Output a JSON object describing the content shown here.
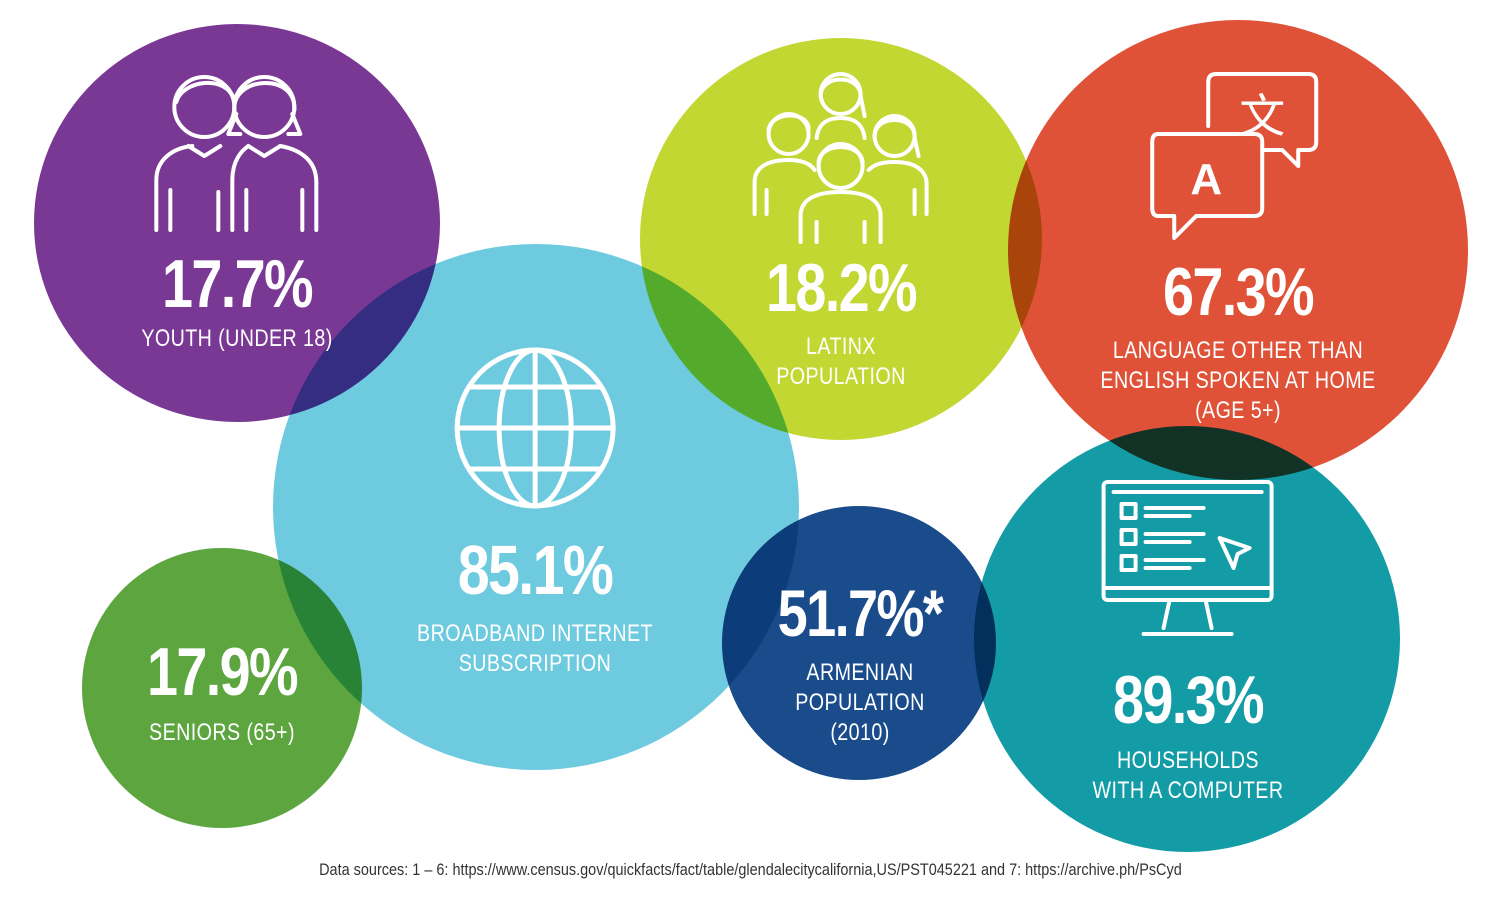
{
  "colors": {
    "purple": "#7A3895",
    "lime": "#C2D731",
    "red": "#DF5238",
    "light_blue": "#6ECBDF",
    "green": "#5DA53F",
    "navy": "#1A4C8C",
    "teal": "#139CA6"
  },
  "stats": {
    "youth": {
      "value": "17.7%",
      "label": "YOUTH (UNDER 18)",
      "icon": "children-icon"
    },
    "latinx": {
      "value": "18.2%",
      "label_lines": [
        "LATINX",
        "POPULATION"
      ],
      "icon": "group-of-people-icon"
    },
    "language": {
      "value": "67.3%",
      "label_lines": [
        "LANGUAGE OTHER THAN",
        "ENGLISH SPOKEN AT HOME",
        "(AGE 5+)"
      ],
      "icon": "translation-speech-bubbles-icon"
    },
    "broadband": {
      "value": "85.1%",
      "label_lines": [
        "BROADBAND INTERNET",
        "SUBSCRIPTION"
      ],
      "icon": "globe-icon"
    },
    "seniors": {
      "value": "17.9%",
      "label": "SENIORS (65+)"
    },
    "armenian": {
      "value": "51.7%*",
      "label_lines": [
        "ARMENIAN",
        "POPULATION",
        "(2010)"
      ]
    },
    "computer": {
      "value": "89.3%",
      "label_lines": [
        "HOUSEHOLDS",
        "WITH A COMPUTER"
      ],
      "icon": "computer-monitor-icon"
    }
  },
  "footer": {
    "text": "Data sources: 1 – 6: https://www.census.gov/quickfacts/fact/table/glendalecitycalifornia,US/PST045221 and 7: https://archive.ph/PsCyd"
  }
}
